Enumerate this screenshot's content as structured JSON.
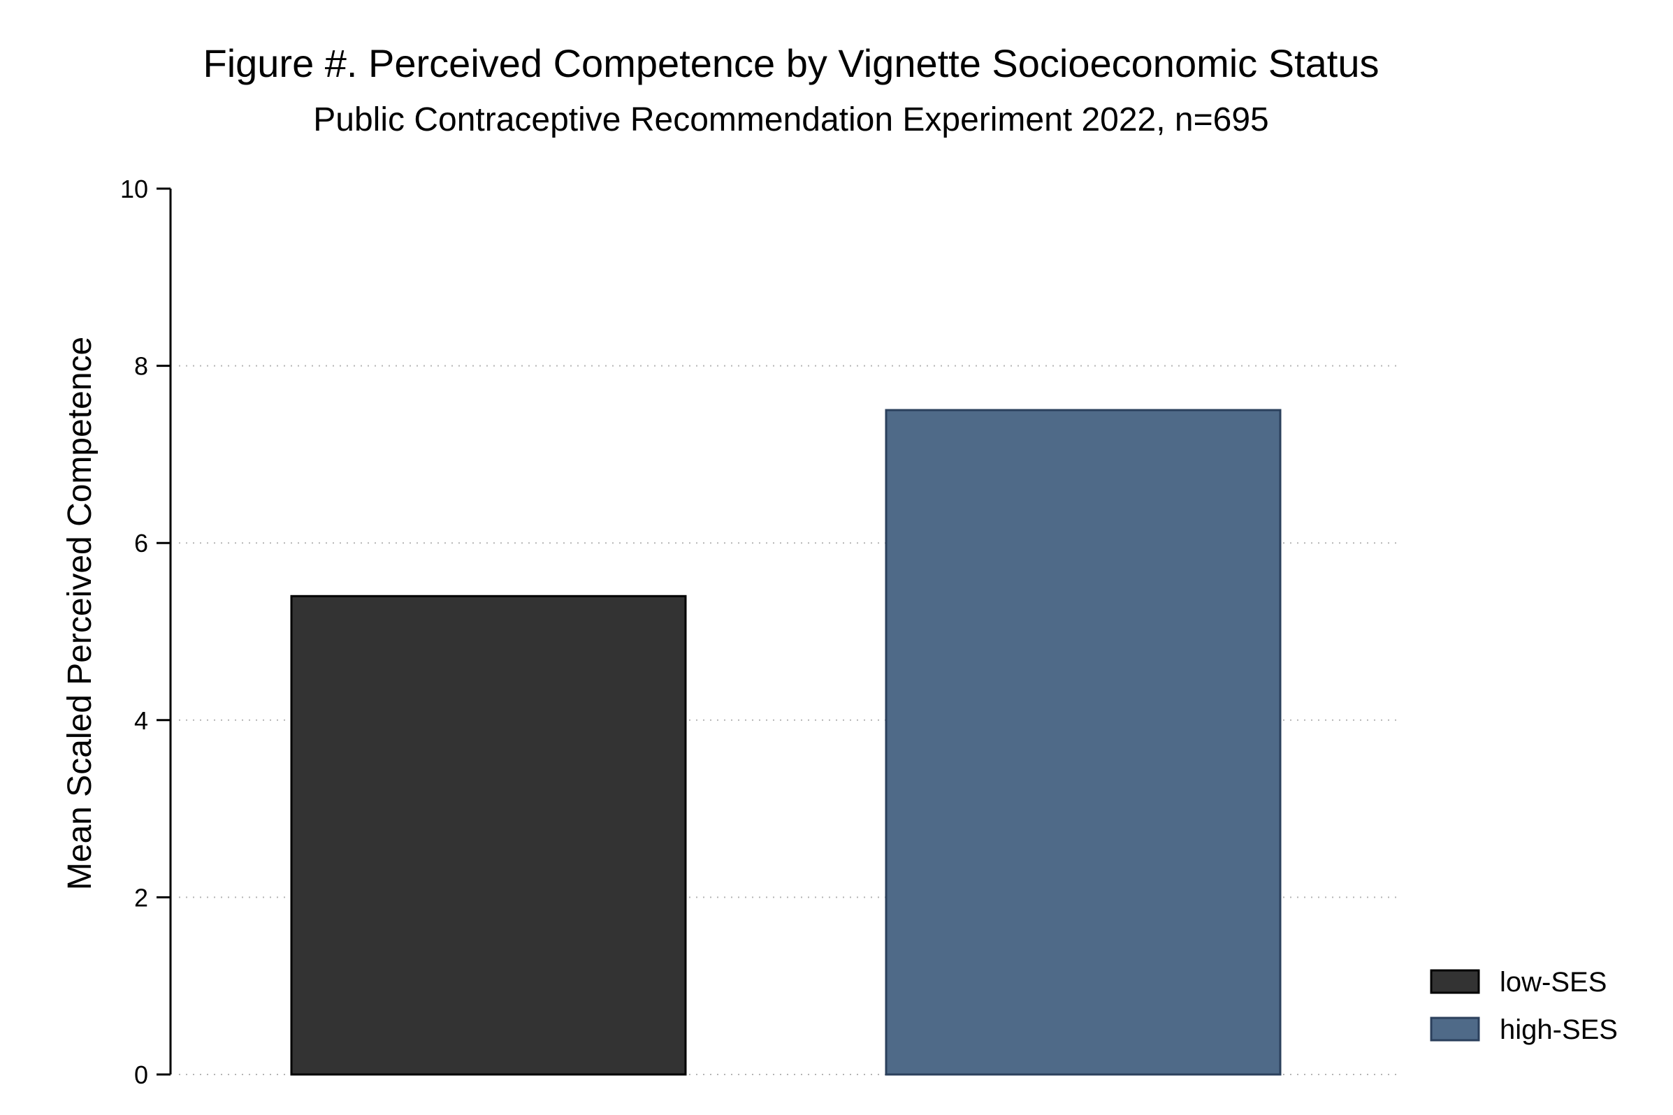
{
  "chart_data": {
    "type": "bar",
    "title": "Figure #. Perceived Competence by Vignette Socioeconomic Status",
    "subtitle": "Public Contraceptive Recommendation Experiment 2022, n=695",
    "xlabel": "",
    "ylabel": "Mean Scaled Perceived Competence",
    "ylim": [
      0,
      10
    ],
    "yticks": [
      0,
      2,
      4,
      6,
      8,
      10
    ],
    "grid": true,
    "legend_position": "bottom-right",
    "series": [
      {
        "name": "low-SES",
        "value": 5.4,
        "color": "#333333"
      },
      {
        "name": "high-SES",
        "value": 7.5,
        "color": "#4f6a88"
      }
    ]
  }
}
